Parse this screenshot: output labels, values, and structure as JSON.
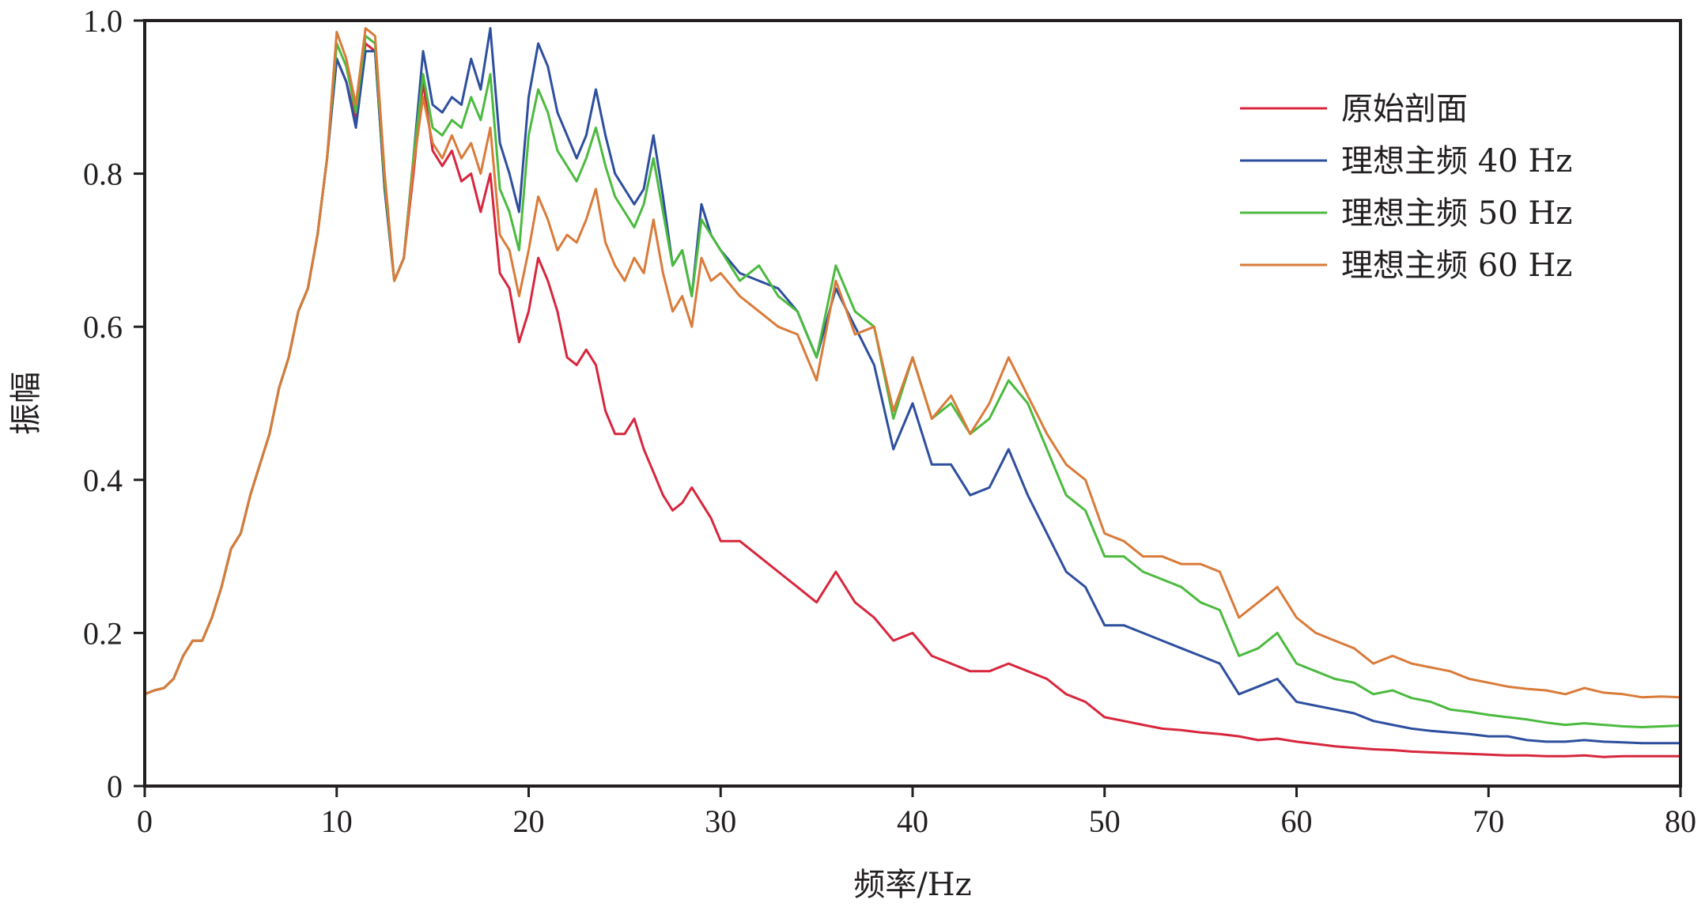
{
  "chart_data": {
    "type": "line",
    "title": "",
    "xlabel": "频率/Hz",
    "ylabel": "振幅",
    "xlim": [
      0,
      80
    ],
    "ylim": [
      0,
      1.0
    ],
    "xticks": [
      0,
      10,
      20,
      30,
      40,
      50,
      60,
      70,
      80
    ],
    "yticks": [
      0,
      0.2,
      0.4,
      0.6,
      0.8,
      1.0
    ],
    "xtick_labels": [
      "0",
      "10",
      "20",
      "30",
      "40",
      "50",
      "60",
      "70",
      "80"
    ],
    "ytick_labels": [
      "0",
      "0.2",
      "0.4",
      "0.6",
      "0.8",
      "1.0"
    ],
    "grid": false,
    "legend_position": "top-right",
    "series": [
      {
        "name": "原始剖面",
        "color": "#d7263d",
        "x": [
          0,
          0.5,
          1,
          1.5,
          2,
          2.5,
          3,
          3.5,
          4,
          4.5,
          5,
          5.5,
          6,
          6.5,
          7,
          7.5,
          8,
          8.5,
          9,
          9.5,
          10,
          10.5,
          11,
          11.5,
          12,
          12.5,
          13,
          13.5,
          14,
          14.5,
          15,
          15.5,
          16,
          16.5,
          17,
          17.5,
          18,
          18.5,
          19,
          19.5,
          20,
          20.5,
          21,
          21.5,
          22,
          22.5,
          23,
          23.5,
          24,
          24.5,
          25,
          25.5,
          26,
          26.5,
          27,
          27.5,
          28,
          28.5,
          29,
          29.5,
          30,
          31,
          32,
          33,
          34,
          35,
          36,
          37,
          38,
          39,
          40,
          41,
          42,
          43,
          44,
          45,
          46,
          47,
          48,
          49,
          50,
          51,
          52,
          53,
          54,
          55,
          56,
          57,
          58,
          59,
          60,
          61,
          62,
          63,
          64,
          65,
          66,
          67,
          68,
          69,
          70,
          71,
          72,
          73,
          74,
          75,
          76,
          77,
          78,
          79,
          80
        ],
        "y": [
          0.12,
          0.125,
          0.128,
          0.14,
          0.17,
          0.19,
          0.19,
          0.22,
          0.26,
          0.31,
          0.33,
          0.38,
          0.42,
          0.46,
          0.52,
          0.56,
          0.62,
          0.65,
          0.72,
          0.82,
          0.95,
          0.92,
          0.87,
          0.97,
          0.96,
          0.78,
          0.66,
          0.69,
          0.8,
          0.92,
          0.83,
          0.81,
          0.83,
          0.79,
          0.8,
          0.75,
          0.8,
          0.67,
          0.65,
          0.58,
          0.62,
          0.69,
          0.66,
          0.62,
          0.56,
          0.55,
          0.57,
          0.55,
          0.49,
          0.46,
          0.46,
          0.48,
          0.44,
          0.41,
          0.38,
          0.36,
          0.37,
          0.39,
          0.37,
          0.35,
          0.32,
          0.32,
          0.3,
          0.28,
          0.26,
          0.24,
          0.28,
          0.24,
          0.22,
          0.19,
          0.2,
          0.17,
          0.16,
          0.15,
          0.15,
          0.16,
          0.15,
          0.14,
          0.12,
          0.11,
          0.09,
          0.085,
          0.08,
          0.075,
          0.073,
          0.07,
          0.068,
          0.065,
          0.06,
          0.062,
          0.058,
          0.055,
          0.052,
          0.05,
          0.048,
          0.047,
          0.045,
          0.044,
          0.043,
          0.042,
          0.041,
          0.04,
          0.04,
          0.039,
          0.039,
          0.04,
          0.038,
          0.039,
          0.039,
          0.039,
          0.039
        ]
      },
      {
        "name": "理想主频 40 Hz",
        "color": "#2e4f9e",
        "x": [
          0,
          0.5,
          1,
          1.5,
          2,
          2.5,
          3,
          3.5,
          4,
          4.5,
          5,
          5.5,
          6,
          6.5,
          7,
          7.5,
          8,
          8.5,
          9,
          9.5,
          10,
          10.5,
          11,
          11.5,
          12,
          12.5,
          13,
          13.5,
          14,
          14.5,
          15,
          15.5,
          16,
          16.5,
          17,
          17.5,
          18,
          18.5,
          19,
          19.5,
          20,
          20.5,
          21,
          21.5,
          22,
          22.5,
          23,
          23.5,
          24,
          24.5,
          25,
          25.5,
          26,
          26.5,
          27,
          27.5,
          28,
          28.5,
          29,
          29.5,
          30,
          31,
          32,
          33,
          34,
          35,
          36,
          37,
          38,
          39,
          40,
          41,
          42,
          43,
          44,
          45,
          46,
          47,
          48,
          49,
          50,
          51,
          52,
          53,
          54,
          55,
          56,
          57,
          58,
          59,
          60,
          61,
          62,
          63,
          64,
          65,
          66,
          67,
          68,
          69,
          70,
          71,
          72,
          73,
          74,
          75,
          76,
          77,
          78,
          79,
          80
        ],
        "y": [
          0.12,
          0.125,
          0.128,
          0.14,
          0.17,
          0.19,
          0.19,
          0.22,
          0.26,
          0.31,
          0.33,
          0.38,
          0.42,
          0.46,
          0.52,
          0.56,
          0.62,
          0.65,
          0.72,
          0.82,
          0.95,
          0.92,
          0.86,
          0.96,
          0.96,
          0.78,
          0.66,
          0.69,
          0.82,
          0.96,
          0.89,
          0.88,
          0.9,
          0.89,
          0.95,
          0.91,
          0.99,
          0.84,
          0.8,
          0.75,
          0.9,
          0.97,
          0.94,
          0.88,
          0.85,
          0.82,
          0.85,
          0.91,
          0.85,
          0.8,
          0.78,
          0.76,
          0.78,
          0.85,
          0.77,
          0.68,
          0.7,
          0.64,
          0.76,
          0.72,
          0.7,
          0.67,
          0.66,
          0.65,
          0.62,
          0.56,
          0.65,
          0.6,
          0.55,
          0.44,
          0.5,
          0.42,
          0.42,
          0.38,
          0.39,
          0.44,
          0.38,
          0.33,
          0.28,
          0.26,
          0.21,
          0.21,
          0.2,
          0.19,
          0.18,
          0.17,
          0.16,
          0.12,
          0.13,
          0.14,
          0.11,
          0.105,
          0.1,
          0.095,
          0.085,
          0.08,
          0.075,
          0.072,
          0.07,
          0.068,
          0.065,
          0.065,
          0.06,
          0.058,
          0.058,
          0.06,
          0.058,
          0.057,
          0.056,
          0.056,
          0.056
        ]
      },
      {
        "name": "理想主频 50 Hz",
        "color": "#4cba3f",
        "x": [
          0,
          0.5,
          1,
          1.5,
          2,
          2.5,
          3,
          3.5,
          4,
          4.5,
          5,
          5.5,
          6,
          6.5,
          7,
          7.5,
          8,
          8.5,
          9,
          9.5,
          10,
          10.5,
          11,
          11.5,
          12,
          12.5,
          13,
          13.5,
          14,
          14.5,
          15,
          15.5,
          16,
          16.5,
          17,
          17.5,
          18,
          18.5,
          19,
          19.5,
          20,
          20.5,
          21,
          21.5,
          22,
          22.5,
          23,
          23.5,
          24,
          24.5,
          25,
          25.5,
          26,
          26.5,
          27,
          27.5,
          28,
          28.5,
          29,
          29.5,
          30,
          31,
          32,
          33,
          34,
          35,
          36,
          37,
          38,
          39,
          40,
          41,
          42,
          43,
          44,
          45,
          46,
          47,
          48,
          49,
          50,
          51,
          52,
          53,
          54,
          55,
          56,
          57,
          58,
          59,
          60,
          61,
          62,
          63,
          64,
          65,
          66,
          67,
          68,
          69,
          70,
          71,
          72,
          73,
          74,
          75,
          76,
          77,
          78,
          79,
          80
        ],
        "y": [
          0.12,
          0.125,
          0.128,
          0.14,
          0.17,
          0.19,
          0.19,
          0.22,
          0.26,
          0.31,
          0.33,
          0.38,
          0.42,
          0.46,
          0.52,
          0.56,
          0.62,
          0.65,
          0.72,
          0.82,
          0.97,
          0.94,
          0.88,
          0.98,
          0.97,
          0.79,
          0.66,
          0.69,
          0.82,
          0.93,
          0.86,
          0.85,
          0.87,
          0.86,
          0.9,
          0.87,
          0.93,
          0.78,
          0.75,
          0.7,
          0.85,
          0.91,
          0.88,
          0.83,
          0.81,
          0.79,
          0.82,
          0.86,
          0.81,
          0.77,
          0.75,
          0.73,
          0.76,
          0.82,
          0.75,
          0.68,
          0.7,
          0.64,
          0.74,
          0.72,
          0.7,
          0.66,
          0.68,
          0.64,
          0.62,
          0.56,
          0.68,
          0.62,
          0.6,
          0.48,
          0.56,
          0.48,
          0.5,
          0.46,
          0.48,
          0.53,
          0.5,
          0.44,
          0.38,
          0.36,
          0.3,
          0.3,
          0.28,
          0.27,
          0.26,
          0.24,
          0.23,
          0.17,
          0.18,
          0.2,
          0.16,
          0.15,
          0.14,
          0.135,
          0.12,
          0.125,
          0.115,
          0.11,
          0.1,
          0.097,
          0.093,
          0.09,
          0.087,
          0.083,
          0.08,
          0.082,
          0.08,
          0.078,
          0.077,
          0.078,
          0.079
        ]
      },
      {
        "name": "理想主频 60 Hz",
        "color": "#d97b3a",
        "x": [
          0,
          0.5,
          1,
          1.5,
          2,
          2.5,
          3,
          3.5,
          4,
          4.5,
          5,
          5.5,
          6,
          6.5,
          7,
          7.5,
          8,
          8.5,
          9,
          9.5,
          10,
          10.5,
          11,
          11.5,
          12,
          12.5,
          13,
          13.5,
          14,
          14.5,
          15,
          15.5,
          16,
          16.5,
          17,
          17.5,
          18,
          18.5,
          19,
          19.5,
          20,
          20.5,
          21,
          21.5,
          22,
          22.5,
          23,
          23.5,
          24,
          24.5,
          25,
          25.5,
          26,
          26.5,
          27,
          27.5,
          28,
          28.5,
          29,
          29.5,
          30,
          31,
          32,
          33,
          34,
          35,
          36,
          37,
          38,
          39,
          40,
          41,
          42,
          43,
          44,
          45,
          46,
          47,
          48,
          49,
          50,
          51,
          52,
          53,
          54,
          55,
          56,
          57,
          58,
          59,
          60,
          61,
          62,
          63,
          64,
          65,
          66,
          67,
          68,
          69,
          70,
          71,
          72,
          73,
          74,
          75,
          76,
          77,
          78,
          79,
          80
        ],
        "y": [
          0.12,
          0.125,
          0.128,
          0.14,
          0.17,
          0.19,
          0.19,
          0.22,
          0.26,
          0.31,
          0.33,
          0.38,
          0.42,
          0.46,
          0.52,
          0.56,
          0.62,
          0.65,
          0.72,
          0.82,
          0.985,
          0.95,
          0.89,
          0.99,
          0.98,
          0.8,
          0.66,
          0.69,
          0.81,
          0.9,
          0.84,
          0.82,
          0.85,
          0.82,
          0.84,
          0.8,
          0.86,
          0.72,
          0.7,
          0.64,
          0.7,
          0.77,
          0.74,
          0.7,
          0.72,
          0.71,
          0.74,
          0.78,
          0.71,
          0.68,
          0.66,
          0.69,
          0.67,
          0.74,
          0.67,
          0.62,
          0.64,
          0.6,
          0.69,
          0.66,
          0.67,
          0.64,
          0.62,
          0.6,
          0.59,
          0.53,
          0.66,
          0.59,
          0.6,
          0.49,
          0.56,
          0.48,
          0.51,
          0.46,
          0.5,
          0.56,
          0.51,
          0.46,
          0.42,
          0.4,
          0.33,
          0.32,
          0.3,
          0.3,
          0.29,
          0.29,
          0.28,
          0.22,
          0.24,
          0.26,
          0.22,
          0.2,
          0.19,
          0.18,
          0.16,
          0.17,
          0.16,
          0.155,
          0.15,
          0.14,
          0.135,
          0.13,
          0.127,
          0.125,
          0.12,
          0.128,
          0.122,
          0.12,
          0.116,
          0.117,
          0.116
        ]
      }
    ]
  }
}
